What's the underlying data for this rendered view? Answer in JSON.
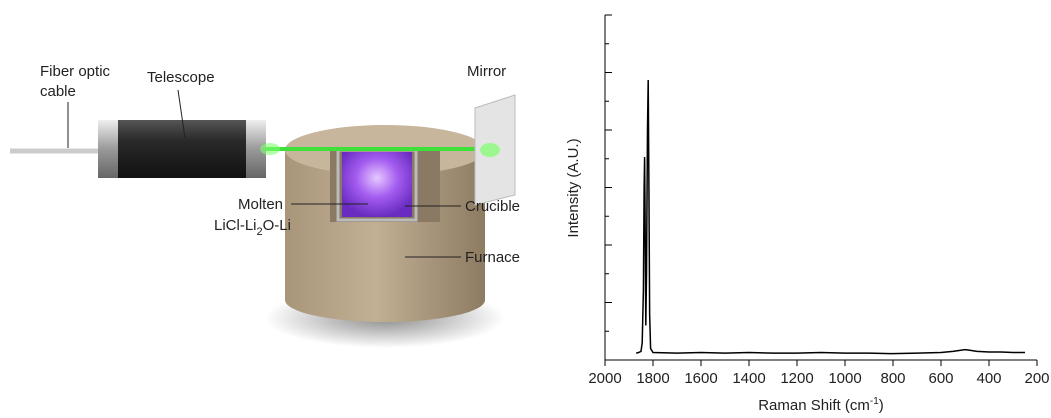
{
  "diagram": {
    "labels": {
      "fiber_line1": "Fiber optic",
      "fiber_line2": "cable",
      "telescope": "Telescope",
      "mirror": "Mirror",
      "molten": "Molten",
      "formula": [
        "LiCl-Li",
        "2",
        "O-Li"
      ],
      "crucible": "Crucible",
      "furnace": "Furnace"
    }
  },
  "chart_data": {
    "type": "line",
    "xlabel": [
      "Raman Shift (cm",
      "-1",
      ")"
    ],
    "ylabel": "Intensity (A.U.)",
    "color": "#000000",
    "x": [
      1870,
      1860,
      1850,
      1845,
      1840,
      1837,
      1835,
      1833,
      1830,
      1827,
      1823,
      1820,
      1817,
      1814,
      1810,
      1800,
      1700,
      1600,
      1500,
      1400,
      1300,
      1200,
      1100,
      1000,
      900,
      800,
      700,
      600,
      550,
      500,
      480,
      450,
      400,
      350,
      300,
      250
    ],
    "values": [
      0.12,
      0.13,
      0.15,
      0.3,
      1.2,
      3.0,
      3.53,
      2.5,
      0.6,
      1.5,
      4.0,
      4.87,
      3.0,
      0.8,
      0.2,
      0.13,
      0.12,
      0.13,
      0.12,
      0.13,
      0.12,
      0.12,
      0.13,
      0.12,
      0.12,
      0.11,
      0.12,
      0.13,
      0.15,
      0.18,
      0.17,
      0.15,
      0.14,
      0.14,
      0.13,
      0.13
    ],
    "xlim": [
      2000,
      200
    ],
    "xticks": [
      2000,
      1800,
      1600,
      1400,
      1200,
      1000,
      800,
      600,
      400,
      200
    ],
    "ylim": [
      0,
      6
    ],
    "yticks": [
      0,
      1,
      2,
      3,
      4,
      5,
      6
    ],
    "yticks_minor": [
      0.5,
      1.5,
      2.5,
      3.5,
      4.5,
      5.5
    ],
    "ytick_labels": false
  }
}
